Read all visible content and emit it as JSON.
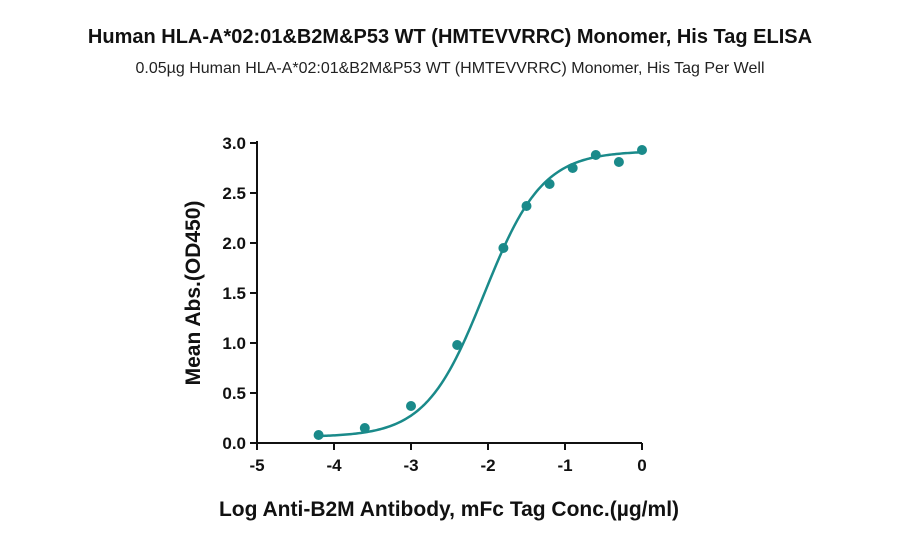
{
  "chart_data": {
    "type": "scatter",
    "title": "Human HLA-A*02:01&B2M&P53 WT (HMTEVVRRC) Monomer, His Tag ELISA",
    "subtitle": "0.05µg Human HLA-A*02:01&B2M&P53 WT (HMTEVVRRC) Monomer, His Tag Per Well",
    "xlabel": "Log Anti-B2M Antibody, mFc Tag Conc.(µg/ml)",
    "ylabel": "Mean Abs.(OD450)",
    "xlim": [
      -5,
      0
    ],
    "ylim": [
      0,
      3.0
    ],
    "xticks": [
      -5,
      -4,
      -3,
      -2,
      -1,
      0
    ],
    "yticks": [
      0.0,
      0.5,
      1.0,
      1.5,
      2.0,
      2.5,
      3.0
    ],
    "grid": false,
    "color": "#1a8a8a",
    "series": [
      {
        "x": [
          -4.2,
          -3.6,
          -3.0,
          -2.4,
          -1.8,
          -1.5,
          -1.2,
          -0.9,
          -0.6,
          -0.3,
          0.0
        ],
        "y": [
          0.08,
          0.15,
          0.37,
          0.98,
          1.95,
          2.37,
          2.59,
          2.75,
          2.88,
          2.81,
          2.93
        ]
      }
    ],
    "fit": {
      "bottom": 0.06,
      "top": 2.92,
      "logEC50": -2.05,
      "hill": 1.15
    }
  }
}
